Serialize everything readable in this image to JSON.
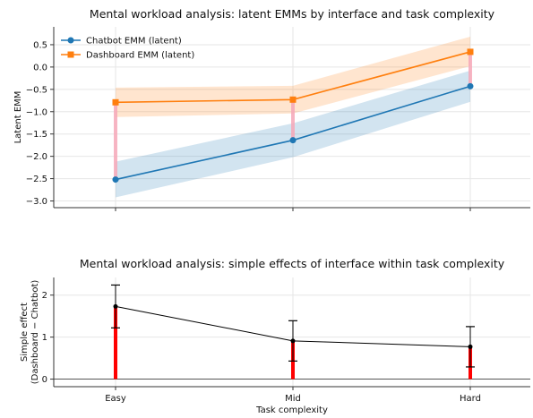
{
  "chart_data": [
    {
      "type": "line",
      "title": "Mental workload analysis: latent EMMs by interface and task complexity",
      "xlabel": "",
      "ylabel": "Latent EMM",
      "categories": [
        "Easy",
        "Mid",
        "Hard"
      ],
      "ylim": [
        -3.15,
        0.9
      ],
      "yticks": [
        "0.5",
        "0.0",
        "−0.5",
        "−1.0",
        "−1.5",
        "−2.0",
        "−2.5",
        "−3.0"
      ],
      "ytick_values": [
        0.5,
        0.0,
        -0.5,
        -1.0,
        -1.5,
        -2.0,
        -2.5,
        -3.0
      ],
      "grid": true,
      "legend": "top-left",
      "series": [
        {
          "name": "Chatbot EMM (latent)",
          "color": "#1f77b4",
          "marker": "circle",
          "values": [
            -2.52,
            -1.64,
            -0.43
          ],
          "ci_low": [
            -2.92,
            -2.02,
            -0.78
          ],
          "ci_high": [
            -2.12,
            -1.26,
            -0.08
          ]
        },
        {
          "name": "Dashboard EMM (latent)",
          "color": "#ff7f0e",
          "marker": "square",
          "values": [
            -0.79,
            -0.73,
            0.34
          ],
          "ci_low": [
            -1.12,
            -1.04,
            0.02
          ],
          "ci_high": [
            -0.46,
            -0.42,
            0.68
          ]
        }
      ],
      "connector_color": "#f7a8b8"
    },
    {
      "type": "line",
      "title": "Mental workload analysis: simple effects of interface within task complexity",
      "xlabel": "Task complexity",
      "ylabel_lines": [
        "Simple effect",
        "(Dashboard − Chatbot)"
      ],
      "categories": [
        "Easy",
        "Mid",
        "Hard"
      ],
      "ylim": [
        -0.18,
        2.42
      ],
      "yticks": [
        "0",
        "1",
        "2"
      ],
      "ytick_values": [
        0,
        1,
        2
      ],
      "grid": true,
      "series": [
        {
          "color": "#000000",
          "values": [
            1.73,
            0.91,
            0.77
          ],
          "ci_low": [
            1.22,
            0.43,
            0.29
          ],
          "ci_high": [
            2.24,
            1.39,
            1.25
          ]
        }
      ],
      "bar_color": "#ff0000"
    }
  ]
}
